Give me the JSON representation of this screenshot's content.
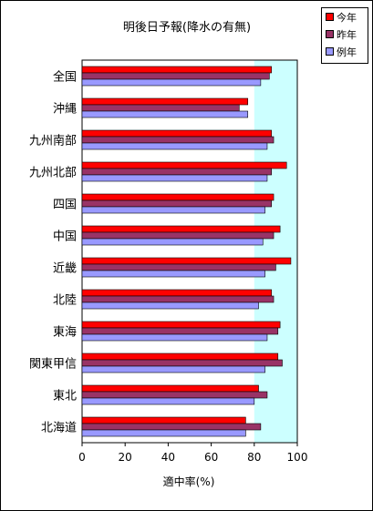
{
  "chart_data": {
    "type": "bar",
    "orientation": "horizontal",
    "title": "明後日予報(降水の有無)",
    "xlabel": "適中率(%)",
    "ylabel": "",
    "xlim": [
      0,
      100
    ],
    "xticks": [
      "0",
      "20",
      "40",
      "60",
      "80",
      "100"
    ],
    "grid": false,
    "legend_position": "top-right",
    "shaded_band": [
      80,
      100
    ],
    "categories": [
      "全国",
      "沖縄",
      "九州南部",
      "九州北部",
      "四国",
      "中国",
      "近畿",
      "北陸",
      "東海",
      "関東甲信",
      "東北",
      "北海道"
    ],
    "series": [
      {
        "name": "今年",
        "color": "#ff0000",
        "values": [
          88,
          77,
          88,
          95,
          89,
          92,
          97,
          88,
          92,
          91,
          82,
          76
        ]
      },
      {
        "name": "昨年",
        "color": "#993366",
        "values": [
          87,
          73,
          89,
          88,
          88,
          89,
          90,
          89,
          91,
          93,
          86,
          83
        ]
      },
      {
        "name": "例年",
        "color": "#9999ff",
        "values": [
          83,
          77,
          86,
          86,
          85,
          84,
          85,
          82,
          86,
          85,
          80,
          76
        ]
      }
    ],
    "plot_background": "#ccffff"
  }
}
